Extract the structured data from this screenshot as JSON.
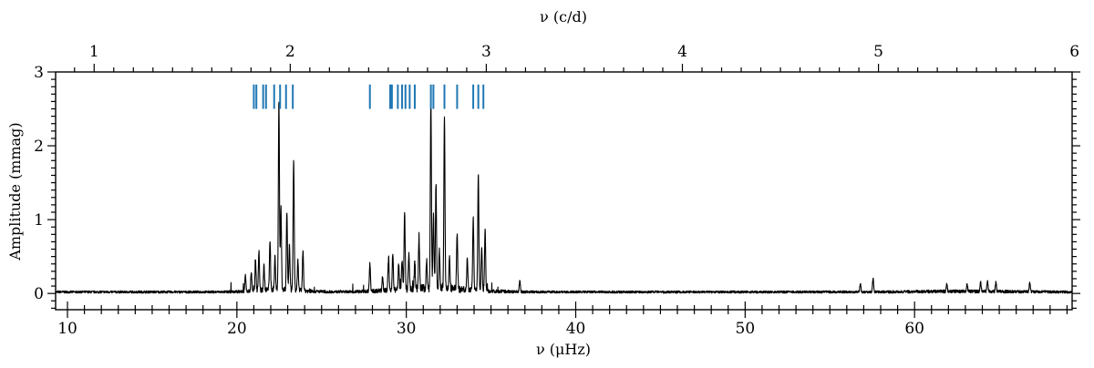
{
  "chart_data": {
    "type": "line",
    "xlabel": "ν (μHz)",
    "ylabel": "Amplitude (mmag)",
    "top_xlabel": "ν (c/d)",
    "xlim": [
      9.3,
      69.3
    ],
    "ylim": [
      -0.22,
      3.0
    ],
    "x_ticks": [
      10,
      20,
      30,
      40,
      50,
      60
    ],
    "y_ticks": [
      0,
      1,
      2,
      3
    ],
    "top_ticks": [
      1,
      2,
      3,
      4,
      5,
      6
    ],
    "top_scale_uHz_per_cd": 11.574,
    "colors": {
      "spectrum": "#000000",
      "markers": "#1f77b4"
    },
    "markers": {
      "y_range": [
        2.5,
        2.83
      ],
      "x": [
        21.0,
        21.15,
        21.55,
        21.72,
        22.2,
        22.55,
        22.9,
        23.3,
        27.85,
        29.05,
        29.15,
        29.5,
        29.75,
        29.95,
        30.2,
        30.5,
        31.45,
        31.6,
        32.25,
        33.0,
        33.95,
        34.25,
        34.55
      ]
    },
    "peaks": [
      {
        "x": 20.5,
        "y": 0.21
      },
      {
        "x": 20.85,
        "y": 0.25
      },
      {
        "x": 21.1,
        "y": 0.4
      },
      {
        "x": 21.3,
        "y": 0.53
      },
      {
        "x": 21.6,
        "y": 0.33
      },
      {
        "x": 21.95,
        "y": 0.66
      },
      {
        "x": 22.25,
        "y": 0.44
      },
      {
        "x": 22.48,
        "y": 2.55
      },
      {
        "x": 22.6,
        "y": 1.1
      },
      {
        "x": 22.95,
        "y": 1.06
      },
      {
        "x": 23.1,
        "y": 0.6
      },
      {
        "x": 23.35,
        "y": 1.78
      },
      {
        "x": 23.6,
        "y": 0.4
      },
      {
        "x": 23.9,
        "y": 0.55
      },
      {
        "x": 27.85,
        "y": 0.37
      },
      {
        "x": 28.6,
        "y": 0.2
      },
      {
        "x": 28.95,
        "y": 0.42
      },
      {
        "x": 29.2,
        "y": 0.5
      },
      {
        "x": 29.55,
        "y": 0.35
      },
      {
        "x": 29.75,
        "y": 0.4
      },
      {
        "x": 29.9,
        "y": 1.05
      },
      {
        "x": 30.15,
        "y": 0.46
      },
      {
        "x": 30.5,
        "y": 0.38
      },
      {
        "x": 30.75,
        "y": 0.71
      },
      {
        "x": 31.2,
        "y": 0.4
      },
      {
        "x": 31.45,
        "y": 2.55
      },
      {
        "x": 31.6,
        "y": 1.0
      },
      {
        "x": 31.75,
        "y": 1.42
      },
      {
        "x": 31.95,
        "y": 0.5
      },
      {
        "x": 32.25,
        "y": 2.38
      },
      {
        "x": 32.55,
        "y": 0.4
      },
      {
        "x": 33.0,
        "y": 0.75
      },
      {
        "x": 33.6,
        "y": 0.45
      },
      {
        "x": 33.95,
        "y": 0.99
      },
      {
        "x": 34.25,
        "y": 1.57
      },
      {
        "x": 34.45,
        "y": 0.6
      },
      {
        "x": 34.65,
        "y": 0.83
      },
      {
        "x": 36.7,
        "y": 0.15
      },
      {
        "x": 56.8,
        "y": 0.12
      },
      {
        "x": 57.55,
        "y": 0.18
      },
      {
        "x": 61.9,
        "y": 0.1
      },
      {
        "x": 63.1,
        "y": 0.1
      },
      {
        "x": 63.9,
        "y": 0.12
      },
      {
        "x": 64.3,
        "y": 0.14
      },
      {
        "x": 64.8,
        "y": 0.12
      },
      {
        "x": 66.8,
        "y": 0.13
      }
    ],
    "grid": false,
    "legend": "none"
  }
}
